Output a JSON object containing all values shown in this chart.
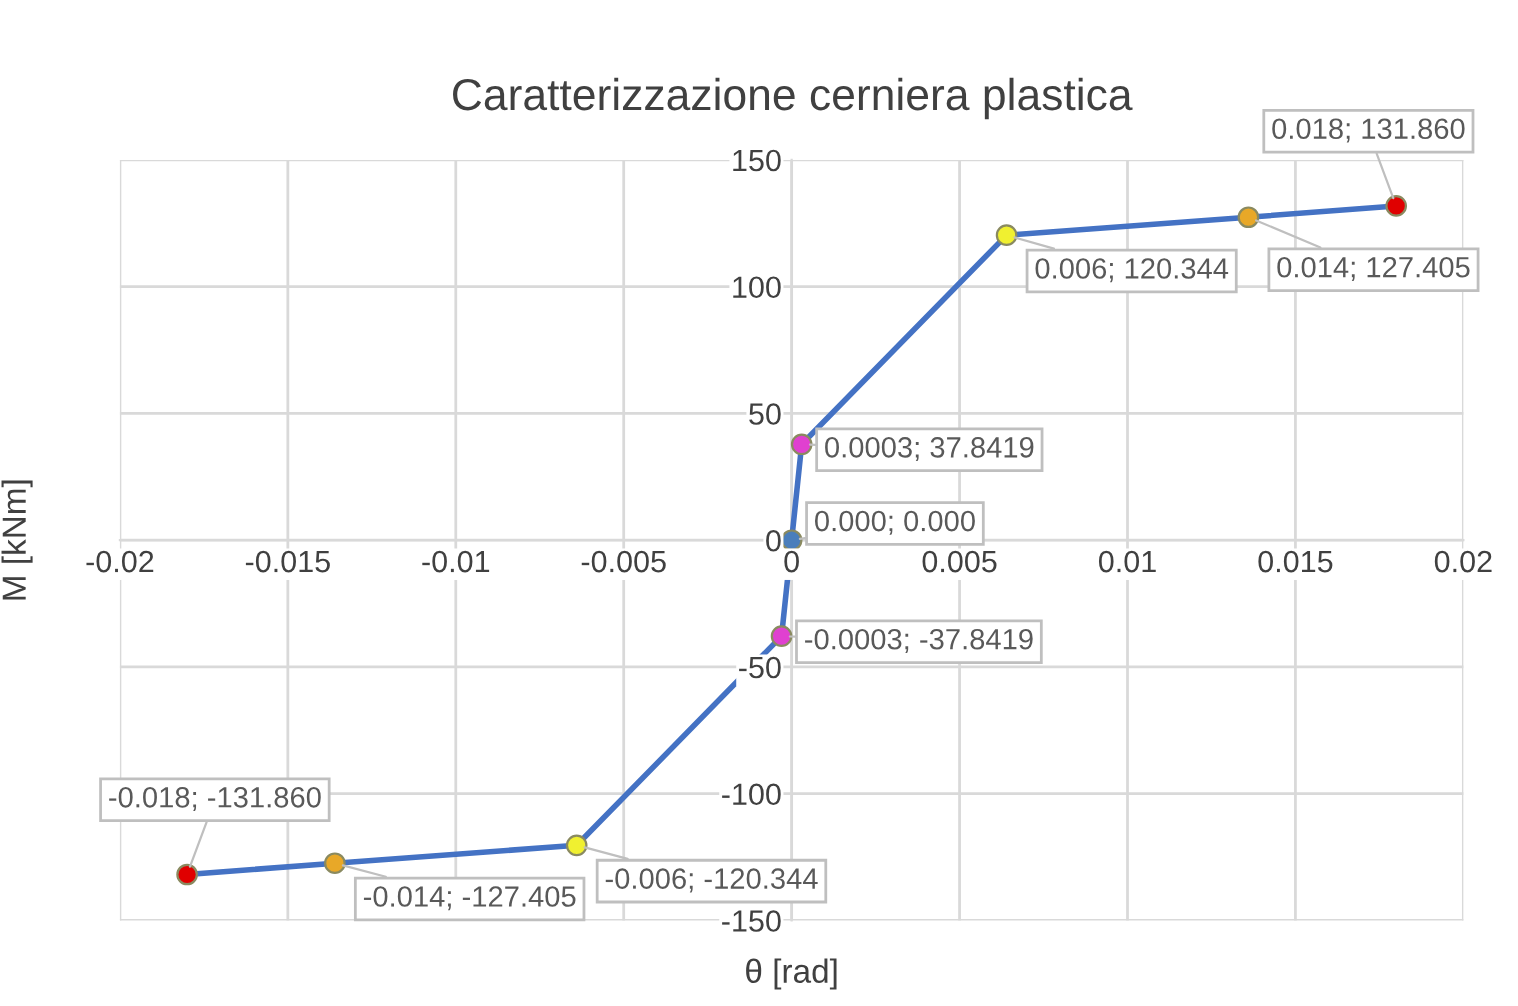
{
  "chart_data": {
    "type": "line",
    "title": "Caratterizzazione cerniera plastica",
    "xlabel": "θ [rad]",
    "ylabel": "M [kNm]",
    "x": [
      -0.018,
      -0.0136,
      -0.0064,
      -0.0003,
      0,
      0.0003,
      0.0064,
      0.0136,
      0.018
    ],
    "series": [
      {
        "color": "#4472c4",
        "values": [
          -131.86,
          -127.405,
          -120.344,
          -37.8419,
          0,
          37.8419,
          120.344,
          127.405,
          131.86
        ],
        "colors": [
          "#e00000",
          "#e8a828",
          "#f0f030",
          "#e040d0",
          "#4a7ebb",
          "#e040d0",
          "#f0f030",
          "#e8a828",
          "#e00000"
        ],
        "value_labels": [
          "-0.018; -131.860",
          "-0.014; -127.405",
          "-0.006; -120.344",
          "-0.0003; -37.8419",
          "0.000; 0.000",
          "0.0003; 37.8419",
          "0.006; 120.344",
          "0.014; 127.405",
          "0.018; 131.860"
        ]
      }
    ],
    "xlim": [
      -0.02,
      0.02
    ],
    "ylim": [
      -150,
      150
    ],
    "xticks": [
      -0.02,
      -0.015,
      -0.01,
      -0.005,
      0,
      0.005,
      0.01,
      0.015,
      0.02
    ],
    "yticks": [
      -150,
      -100,
      -50,
      0,
      50,
      100,
      150
    ],
    "grid": true,
    "marker": "circle",
    "line_style": "solid"
  }
}
